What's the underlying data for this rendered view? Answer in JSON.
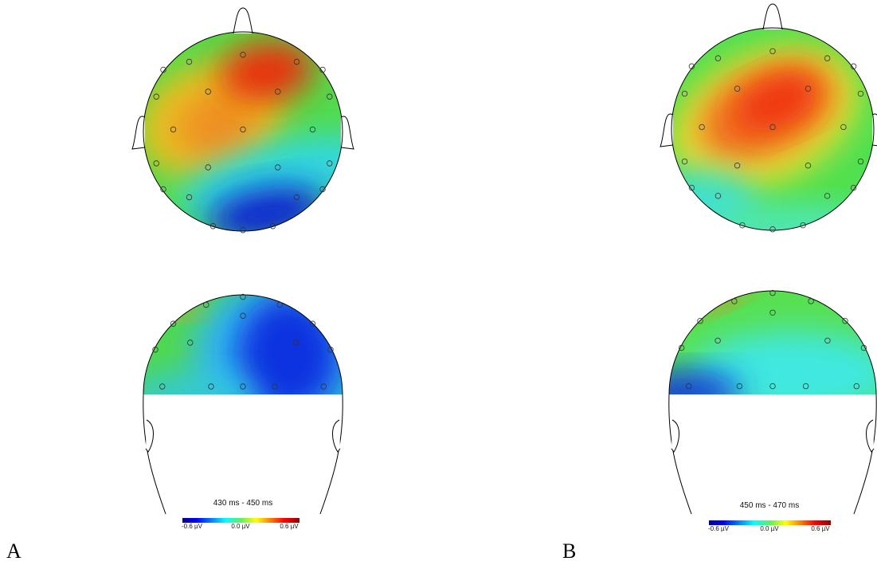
{
  "panels": [
    {
      "label": "A",
      "time_range": "430 ms - 450 ms",
      "colorbar": {
        "min_label": "-0.6 µV",
        "mid_label": "0.0 µV",
        "max_label": "0.6 µV"
      }
    },
    {
      "label": "B",
      "time_range": "450 ms - 470 ms",
      "colorbar": {
        "min_label": "-0.6 µV",
        "mid_label": "0.0 µV",
        "max_label": "0.6 µV"
      }
    }
  ]
}
